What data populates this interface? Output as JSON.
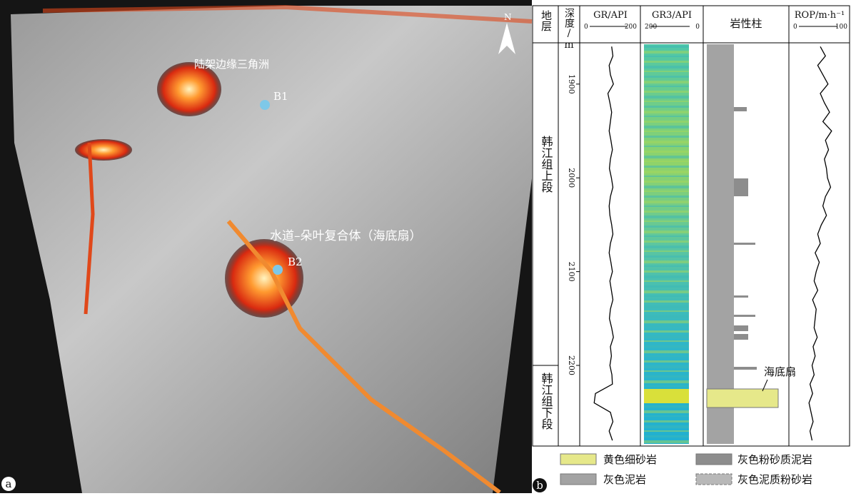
{
  "panel_a": {
    "label": "a",
    "north": "N",
    "annotations": [
      "陆架边缘三角洲",
      "B1",
      "水道–朵叶复合体（海底扇）",
      "B2"
    ]
  },
  "panel_b": {
    "label": "b",
    "headers": {
      "strata": "地层",
      "depth": "深度/m",
      "lithology": "岩性柱"
    },
    "strata": [
      "韩江组上段",
      "韩江组下段"
    ],
    "depth": {
      "ylim": [
        1856,
        2286
      ],
      "ticks": [
        1900,
        2000,
        2100,
        2200
      ],
      "x": [
        1860,
        1870,
        1880,
        1890,
        1900,
        1910,
        1920,
        1930,
        1940,
        1950,
        1960,
        1970,
        1980,
        1990,
        2000,
        2010,
        2020,
        2030,
        2040,
        2050,
        2060,
        2070,
        2080,
        2090,
        2100,
        2110,
        2120,
        2130,
        2140,
        2150,
        2160,
        2170,
        2180,
        2190,
        2200,
        2210,
        2220,
        2230,
        2240,
        2250,
        2260,
        2270,
        2280
      ]
    },
    "tracks": [
      {
        "name": "GR/API",
        "xlim": [
          0,
          200
        ],
        "values": [
          105,
          110,
          95,
          100,
          112,
          90,
          98,
          105,
          100,
          95,
          102,
          108,
          100,
          96,
          104,
          110,
          100,
          95,
          98,
          105,
          110,
          100,
          95,
          102,
          108,
          98,
          104,
          110,
          100,
          96,
          105,
          112,
          100,
          104,
          98,
          106,
          108,
          40,
          35,
          100,
          110,
          95,
          108
        ]
      },
      {
        "name": "GR3/API",
        "xlim": [
          200,
          0
        ]
      },
      {
        "name": "ROP/m·h⁻¹",
        "xlim": [
          0,
          100
        ],
        "values": [
          50,
          60,
          45,
          55,
          65,
          50,
          58,
          68,
          55,
          72,
          60,
          66,
          58,
          62,
          64,
          70,
          60,
          55,
          62,
          52,
          45,
          50,
          40,
          48,
          42,
          38,
          45,
          35,
          42,
          40,
          38,
          44,
          36,
          40,
          34,
          38,
          30,
          35,
          28,
          32,
          36,
          30,
          34
        ]
      }
    ],
    "annotation": "海底扇",
    "legend": [
      "黄色细砂岩",
      "灰色粉砂质泥岩",
      "灰色泥岩",
      "灰色泥质粉砂岩"
    ]
  }
}
